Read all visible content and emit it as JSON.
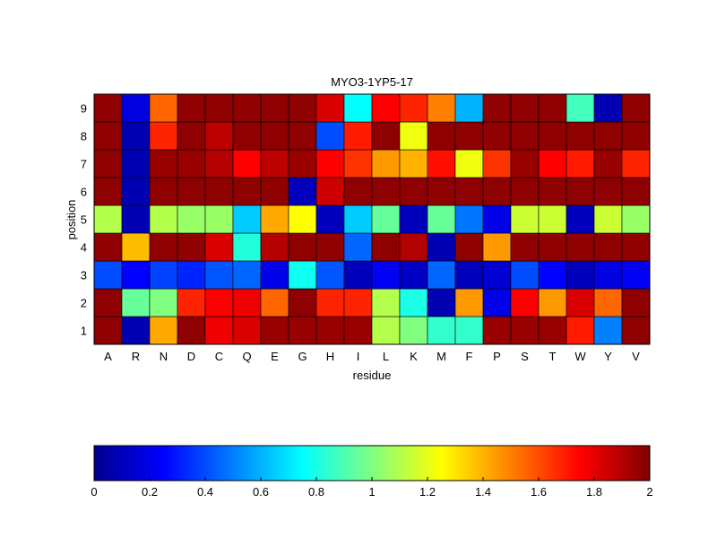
{
  "chart_data": {
    "type": "heatmap",
    "title": "MYO3-1YP5-17",
    "xlabel": "residue",
    "ylabel": "position",
    "x_categories": [
      "A",
      "R",
      "N",
      "D",
      "C",
      "Q",
      "E",
      "G",
      "H",
      "I",
      "L",
      "K",
      "M",
      "F",
      "P",
      "S",
      "T",
      "W",
      "Y",
      "V"
    ],
    "y_categories": [
      "1",
      "2",
      "3",
      "4",
      "5",
      "6",
      "7",
      "8",
      "9"
    ],
    "value_range": [
      0,
      2
    ],
    "colormap": "jet",
    "grid": false,
    "colorbar": {
      "orientation": "horizontal",
      "placement": "bottom",
      "ticks": [
        "0",
        "0.2",
        "0.4",
        "0.6",
        "0.8",
        "1",
        "1.2",
        "1.4",
        "1.6",
        "1.8",
        "2"
      ]
    },
    "values": [
      [
        1.97,
        0.08,
        1.42,
        1.97,
        1.78,
        1.82,
        1.95,
        1.95,
        1.95,
        1.95,
        1.1,
        1.0,
        0.85,
        0.85,
        1.95,
        1.95,
        1.95,
        1.7,
        0.5,
        1.97
      ],
      [
        1.97,
        0.95,
        1.0,
        1.68,
        1.75,
        1.78,
        1.55,
        1.97,
        1.68,
        1.68,
        1.1,
        0.8,
        0.08,
        1.45,
        0.2,
        1.75,
        1.45,
        1.82,
        1.55,
        1.97
      ],
      [
        0.4,
        0.25,
        0.38,
        0.32,
        0.42,
        0.45,
        0.2,
        0.78,
        0.42,
        0.1,
        0.22,
        0.12,
        0.45,
        0.1,
        0.15,
        0.4,
        0.25,
        0.1,
        0.18,
        0.22
      ],
      [
        1.97,
        1.38,
        1.97,
        1.97,
        1.82,
        0.82,
        1.9,
        1.97,
        1.97,
        0.45,
        1.97,
        1.9,
        0.08,
        1.97,
        1.45,
        1.97,
        1.97,
        1.97,
        1.97,
        1.97
      ],
      [
        1.1,
        0.08,
        1.1,
        1.05,
        1.05,
        0.65,
        1.42,
        1.25,
        0.1,
        0.65,
        0.95,
        0.1,
        0.95,
        0.48,
        0.2,
        1.15,
        1.15,
        0.1,
        1.15,
        1.05
      ],
      [
        1.97,
        0.08,
        1.97,
        1.97,
        1.97,
        1.97,
        1.97,
        0.1,
        1.85,
        1.97,
        1.97,
        1.97,
        1.97,
        1.97,
        1.97,
        1.97,
        1.97,
        1.97,
        1.97,
        1.97
      ],
      [
        1.97,
        0.08,
        1.95,
        1.95,
        1.9,
        1.75,
        1.88,
        1.95,
        1.75,
        1.65,
        1.45,
        1.4,
        1.72,
        1.22,
        1.65,
        1.95,
        1.75,
        1.7,
        1.95,
        1.68
      ],
      [
        1.97,
        0.08,
        1.68,
        1.97,
        1.88,
        1.97,
        1.97,
        1.97,
        0.4,
        1.7,
        1.97,
        1.22,
        1.97,
        1.97,
        1.97,
        1.97,
        1.97,
        1.97,
        1.97,
        1.97
      ],
      [
        1.97,
        0.18,
        1.55,
        1.97,
        1.97,
        1.97,
        1.97,
        1.97,
        1.82,
        0.75,
        1.75,
        1.68,
        1.5,
        0.6,
        1.97,
        1.97,
        1.97,
        0.88,
        0.08,
        1.97
      ]
    ]
  }
}
